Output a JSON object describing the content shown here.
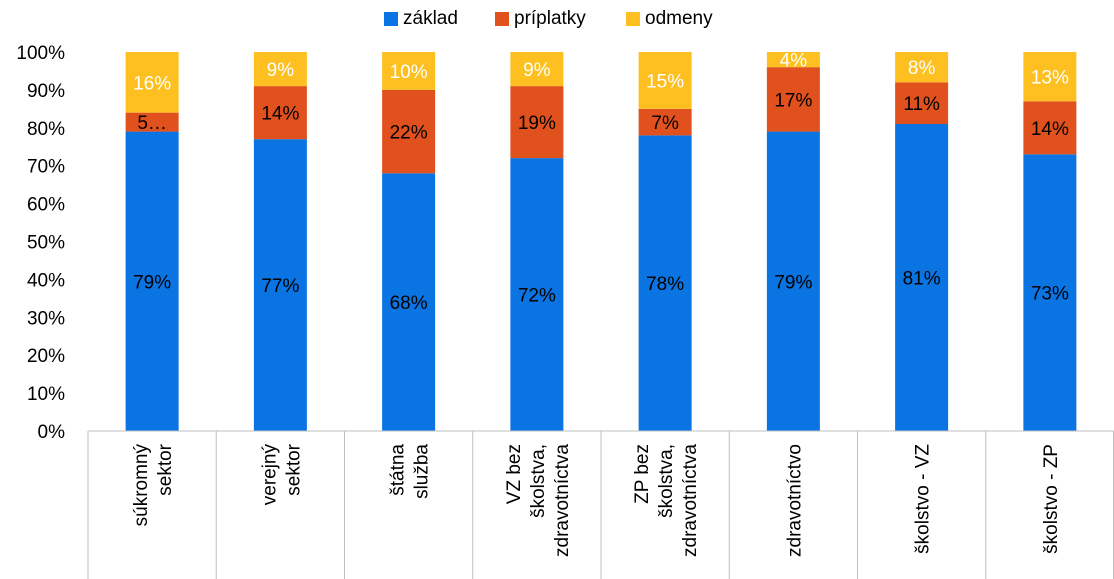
{
  "chart_data": {
    "type": "bar",
    "stacked": true,
    "categories": [
      [
        "súkromný",
        "sektor"
      ],
      [
        "verejný",
        "sektor"
      ],
      [
        "štátna",
        "služba"
      ],
      [
        "VZ bez",
        "školstva,",
        "zdravotníctva"
      ],
      [
        "ZP bez",
        "školstva,",
        "zdravotníctva"
      ],
      [
        "zdravotníctvo"
      ],
      [
        "školstvo - VZ"
      ],
      [
        "školstvo - ZP"
      ]
    ],
    "series": [
      {
        "name": "základ",
        "color": "#0a74e3",
        "values": [
          79,
          77,
          68,
          72,
          78,
          79,
          81,
          73
        ],
        "labels": [
          "79%",
          "77%",
          "68%",
          "72%",
          "78%",
          "79%",
          "81%",
          "73%"
        ]
      },
      {
        "name": "príplatky",
        "color": "#e0511e",
        "values": [
          5,
          14,
          22,
          19,
          7,
          17,
          11,
          14
        ],
        "labels": [
          "5…",
          "14%",
          "22%",
          "19%",
          "7%",
          "17%",
          "11%",
          "14%"
        ]
      },
      {
        "name": "odmeny",
        "color": "#fdc020",
        "values": [
          16,
          9,
          10,
          9,
          15,
          4,
          8,
          13
        ],
        "labels": [
          "16%",
          "9%",
          "10%",
          "9%",
          "15%",
          "4%",
          "8%",
          "13%"
        ]
      }
    ],
    "yticks": [
      "0%",
      "10%",
      "20%",
      "30%",
      "40%",
      "50%",
      "60%",
      "70%",
      "80%",
      "90%",
      "100%"
    ],
    "ylim": [
      0,
      100
    ],
    "grid": false,
    "legend_position": "top-center"
  }
}
